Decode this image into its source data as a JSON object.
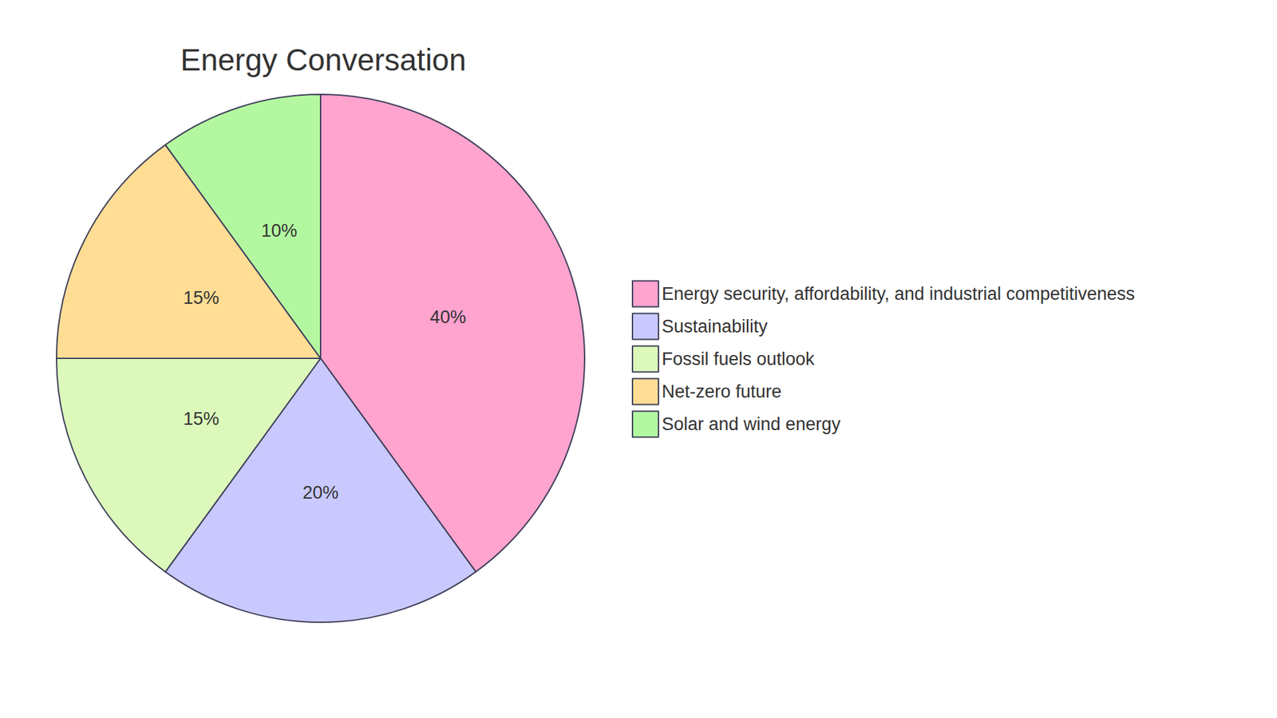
{
  "chart_data": {
    "type": "pie",
    "title": "Energy Conversation",
    "categories": [
      "Energy security, affordability, and industrial competitiveness",
      "Sustainability",
      "Fossil fuels outlook",
      "Net-zero future",
      "Solar and wind energy"
    ],
    "values": [
      40,
      20,
      15,
      15,
      10
    ],
    "value_labels": [
      "40%",
      "20%",
      "15%",
      "15%",
      "10%"
    ],
    "colors": [
      "#ffa3cf",
      "#c9c9ff",
      "#dcf9bb",
      "#ffdd95",
      "#b3f8a1"
    ],
    "data_labels": true,
    "legend": "right"
  }
}
